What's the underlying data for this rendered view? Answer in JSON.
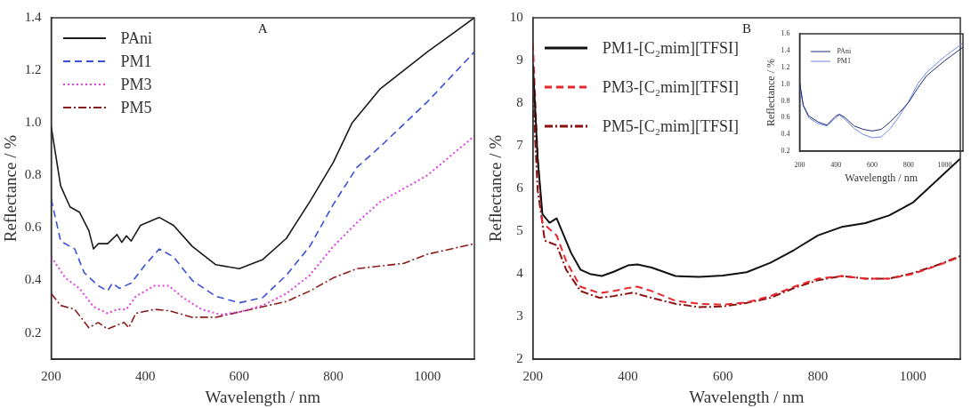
{
  "chart_data": [
    {
      "type": "line",
      "title": "A",
      "xlabel": "Wavelength / nm",
      "ylabel": "Reflectance / %",
      "xlim": [
        200,
        1100
      ],
      "xticks": [
        200,
        400,
        600,
        800,
        1000
      ],
      "ylim": [
        0.1,
        1.4
      ],
      "yticks": [
        0.2,
        0.4,
        0.6,
        0.8,
        {
          "value": 1,
          "label": "1.0"
        },
        1.2,
        1.4
      ],
      "grid": false,
      "legend": "top left",
      "series": [
        {
          "name": "PAni",
          "color": "#1a1a1a",
          "line_style": "solid",
          "x": [
            200,
            220,
            240,
            260,
            280,
            290,
            300,
            320,
            340,
            350,
            360,
            370,
            390,
            430,
            460,
            500,
            550,
            600,
            650,
            700,
            750,
            800,
            840,
            900,
            1000,
            1100
          ],
          "values": [
            0.985,
            0.76,
            0.68,
            0.66,
            0.59,
            0.52,
            0.54,
            0.54,
            0.575,
            0.545,
            0.57,
            0.55,
            0.61,
            0.64,
            0.61,
            0.53,
            0.46,
            0.445,
            0.48,
            0.56,
            0.7,
            0.85,
            1.0,
            1.13,
            1.27,
            1.4
          ]
        },
        {
          "name": "PM1",
          "color": "#3a4fd8",
          "line_style": "dashed",
          "x": [
            200,
            220,
            250,
            270,
            300,
            320,
            330,
            345,
            370,
            400,
            430,
            460,
            500,
            550,
            600,
            650,
            700,
            750,
            800,
            850,
            900,
            1000,
            1100
          ],
          "values": [
            0.71,
            0.55,
            0.52,
            0.43,
            0.38,
            0.36,
            0.39,
            0.37,
            0.39,
            0.46,
            0.52,
            0.49,
            0.4,
            0.34,
            0.315,
            0.335,
            0.42,
            0.53,
            0.69,
            0.83,
            0.91,
            1.08,
            1.27
          ]
        },
        {
          "name": "PM3",
          "color": "#e040e0",
          "line_style": "dotted",
          "x": [
            200,
            230,
            260,
            290,
            320,
            340,
            360,
            380,
            420,
            450,
            480,
            520,
            560,
            600,
            650,
            700,
            750,
            800,
            850,
            900,
            1000,
            1100
          ],
          "values": [
            0.49,
            0.41,
            0.37,
            0.3,
            0.275,
            0.29,
            0.29,
            0.34,
            0.38,
            0.38,
            0.335,
            0.29,
            0.27,
            0.28,
            0.305,
            0.35,
            0.42,
            0.53,
            0.62,
            0.7,
            0.8,
            0.95
          ]
        },
        {
          "name": "PM5",
          "color": "#8b1a1a",
          "line_style": "dashdot",
          "x": [
            200,
            220,
            250,
            280,
            300,
            320,
            340,
            355,
            365,
            380,
            420,
            450,
            500,
            550,
            600,
            650,
            700,
            750,
            800,
            850,
            900,
            950,
            1000,
            1100
          ],
          "values": [
            0.35,
            0.305,
            0.29,
            0.22,
            0.24,
            0.215,
            0.23,
            0.24,
            0.22,
            0.275,
            0.29,
            0.285,
            0.26,
            0.26,
            0.28,
            0.3,
            0.32,
            0.36,
            0.41,
            0.445,
            0.455,
            0.465,
            0.5,
            0.54
          ]
        }
      ]
    },
    {
      "type": "line",
      "title": "B",
      "xlabel": "Wavelength / nm",
      "ylabel": "Reflectance / %",
      "xlim": [
        200,
        1100
      ],
      "xticks": [
        200,
        400,
        600,
        800,
        1000
      ],
      "ylim": [
        2,
        10
      ],
      "yticks": [
        2,
        3,
        4,
        5,
        6,
        7,
        8,
        9,
        10
      ],
      "grid": false,
      "legend": "top left",
      "series": [
        {
          "name": "PM1-[C₂mim][TFSI]",
          "color": "#111111",
          "line_style": "solid",
          "x": [
            200,
            210,
            220,
            235,
            250,
            265,
            280,
            300,
            320,
            345,
            370,
            400,
            420,
            450,
            500,
            550,
            600,
            650,
            700,
            750,
            800,
            850,
            900,
            950,
            1000,
            1100
          ],
          "values": [
            8.9,
            6.7,
            5.4,
            5.2,
            5.3,
            4.9,
            4.5,
            4.1,
            4.0,
            3.95,
            4.05,
            4.2,
            4.22,
            4.15,
            3.95,
            3.93,
            3.96,
            4.04,
            4.26,
            4.56,
            4.9,
            5.1,
            5.19,
            5.37,
            5.67,
            6.7
          ]
        },
        {
          "name": "PM3-[C₂mim][TFSI]",
          "color": "#e8262b",
          "line_style": "dashed",
          "x": [
            200,
            210,
            220,
            250,
            270,
            300,
            340,
            370,
            400,
            420,
            450,
            500,
            550,
            600,
            650,
            700,
            750,
            800,
            850,
            900,
            950,
            1000,
            1050,
            1100
          ],
          "values": [
            9.4,
            6.7,
            5.2,
            4.9,
            4.3,
            3.7,
            3.55,
            3.6,
            3.67,
            3.7,
            3.6,
            3.37,
            3.3,
            3.28,
            3.33,
            3.48,
            3.7,
            3.89,
            3.95,
            3.89,
            3.89,
            4.0,
            4.19,
            4.4
          ]
        },
        {
          "name": "PM5-[C₂mim][TFSI]",
          "color": "#8b0f0f",
          "line_style": "dashdot",
          "x": [
            200,
            210,
            225,
            250,
            270,
            300,
            340,
            370,
            410,
            450,
            500,
            550,
            600,
            650,
            700,
            750,
            800,
            850,
            900,
            950,
            1000,
            1050,
            1100
          ],
          "values": [
            8.2,
            5.96,
            4.78,
            4.67,
            4.1,
            3.6,
            3.44,
            3.48,
            3.56,
            3.44,
            3.3,
            3.22,
            3.24,
            3.32,
            3.44,
            3.67,
            3.85,
            3.95,
            3.89,
            3.89,
            4.02,
            4.2,
            4.42
          ]
        }
      ]
    },
    {
      "type": "line",
      "xlabel": "Wavelength / nm",
      "ylabel": "Reflectance / %",
      "xlim": [
        200,
        1100
      ],
      "xticks": [
        200,
        400,
        600,
        800,
        1000
      ],
      "ylim": [
        0.2,
        1.6
      ],
      "yticks": [
        0.2,
        0.4,
        0.6,
        0.8,
        {
          "value": 1,
          "label": "1.0"
        },
        1.2,
        1.4,
        1.6
      ],
      "grid": false,
      "legend": "top left",
      "series": [
        {
          "name": "PAni",
          "color": "#1c2a7a",
          "line_style": "solid",
          "x": [
            200,
            220,
            250,
            300,
            350,
            400,
            420,
            450,
            500,
            550,
            600,
            650,
            700,
            750,
            800,
            850,
            900,
            1000,
            1100
          ],
          "values": [
            1.03,
            0.75,
            0.62,
            0.55,
            0.51,
            0.62,
            0.64,
            0.6,
            0.5,
            0.46,
            0.44,
            0.46,
            0.55,
            0.66,
            0.78,
            0.95,
            1.1,
            1.28,
            1.44
          ]
        },
        {
          "name": "PM1",
          "color": "#6f86e8",
          "line_style": "solid",
          "x": [
            200,
            220,
            250,
            300,
            350,
            400,
            420,
            450,
            500,
            550,
            600,
            650,
            700,
            750,
            800,
            850,
            900,
            1000,
            1100
          ],
          "values": [
            1.0,
            0.74,
            0.6,
            0.53,
            0.5,
            0.6,
            0.63,
            0.58,
            0.47,
            0.4,
            0.36,
            0.37,
            0.47,
            0.62,
            0.79,
            1.0,
            1.14,
            1.33,
            1.49
          ]
        }
      ]
    }
  ]
}
